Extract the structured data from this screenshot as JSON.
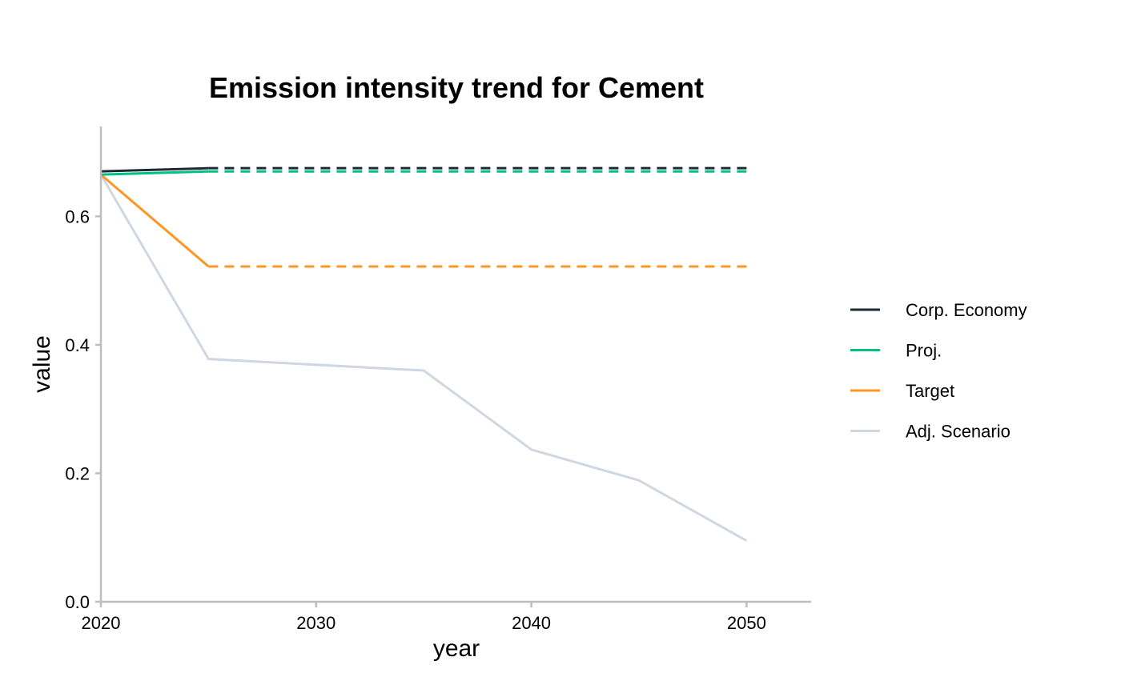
{
  "chart_data": {
    "type": "line",
    "title": "Emission intensity trend for Cement",
    "xlabel": "year",
    "ylabel": "value",
    "xlim": [
      2020,
      2053
    ],
    "ylim": [
      0,
      0.74
    ],
    "x_ticks": [
      2020,
      2030,
      2040,
      2050
    ],
    "y_ticks": [
      0.0,
      0.2,
      0.4,
      0.6
    ],
    "y_tick_labels": [
      "0.0",
      "0.2",
      "0.4",
      "0.6"
    ],
    "grid": false,
    "legend_position": "right",
    "series": [
      {
        "name": "Corp. Economy",
        "color": "#1b2a35",
        "solid": [
          {
            "x": 2020,
            "y": 0.67
          },
          {
            "x": 2025,
            "y": 0.675
          }
        ],
        "dashed": [
          {
            "x": 2025,
            "y": 0.675
          },
          {
            "x": 2050,
            "y": 0.675
          }
        ]
      },
      {
        "name": "Proj.",
        "color": "#00c082",
        "solid": [
          {
            "x": 2020,
            "y": 0.665
          },
          {
            "x": 2025,
            "y": 0.67
          }
        ],
        "dashed": [
          {
            "x": 2025,
            "y": 0.67
          },
          {
            "x": 2050,
            "y": 0.67
          }
        ]
      },
      {
        "name": "Target",
        "color": "#ff9623",
        "solid": [
          {
            "x": 2020,
            "y": 0.665
          },
          {
            "x": 2025,
            "y": 0.522
          }
        ],
        "dashed": [
          {
            "x": 2025,
            "y": 0.522
          },
          {
            "x": 2050,
            "y": 0.522
          }
        ]
      },
      {
        "name": "Adj. Scenario",
        "color": "#d0d7e1",
        "solid": [
          {
            "x": 2020,
            "y": 0.665
          },
          {
            "x": 2025,
            "y": 0.378
          },
          {
            "x": 2035,
            "y": 0.36
          },
          {
            "x": 2040,
            "y": 0.237
          },
          {
            "x": 2045,
            "y": 0.189
          },
          {
            "x": 2050,
            "y": 0.095
          }
        ],
        "dashed": []
      }
    ]
  }
}
